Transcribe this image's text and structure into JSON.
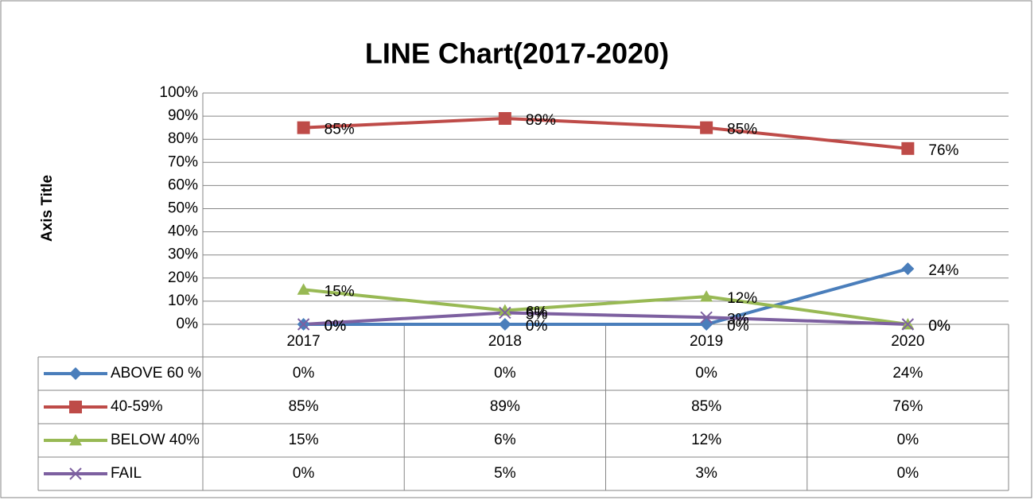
{
  "chart_data": {
    "type": "line",
    "title": "LINE Chart(2017-2020)",
    "y_label": "Axis Title",
    "categories": [
      "2017",
      "2018",
      "2019",
      "2020"
    ],
    "series": [
      {
        "name": "ABOVE 60 %",
        "color": "#4a7ebb",
        "marker": "diamond",
        "values": [
          0,
          0,
          0,
          24
        ],
        "value_labels": [
          "0%",
          "0%",
          "0%",
          "24%"
        ]
      },
      {
        "name": "40-59%",
        "color": "#be4b48",
        "marker": "square",
        "values": [
          85,
          89,
          85,
          76
        ],
        "value_labels": [
          "85%",
          "89%",
          "85%",
          "76%"
        ]
      },
      {
        "name": "BELOW 40%",
        "color": "#98b954",
        "marker": "triangle",
        "values": [
          15,
          6,
          12,
          0
        ],
        "value_labels": [
          "15%",
          "6%",
          "12%",
          "0%"
        ]
      },
      {
        "name": "FAIL",
        "color": "#7d60a0",
        "marker": "x",
        "values": [
          0,
          5,
          3,
          0
        ],
        "value_labels": [
          "0%",
          "5%",
          "3%",
          "0%"
        ]
      }
    ],
    "ylim": [
      0,
      100
    ],
    "yticks": [
      {
        "value": 0,
        "label": "0%"
      },
      {
        "value": 10,
        "label": "10%"
      },
      {
        "value": 20,
        "label": "20%"
      },
      {
        "value": 30,
        "label": "30%"
      },
      {
        "value": 40,
        "label": "40%"
      },
      {
        "value": 50,
        "label": "50%"
      },
      {
        "value": 60,
        "label": "60%"
      },
      {
        "value": 70,
        "label": "70%"
      },
      {
        "value": 80,
        "label": "80%"
      },
      {
        "value": 90,
        "label": "90%"
      },
      {
        "value": 100,
        "label": "100%"
      }
    ],
    "grid": true,
    "data_table": true
  }
}
